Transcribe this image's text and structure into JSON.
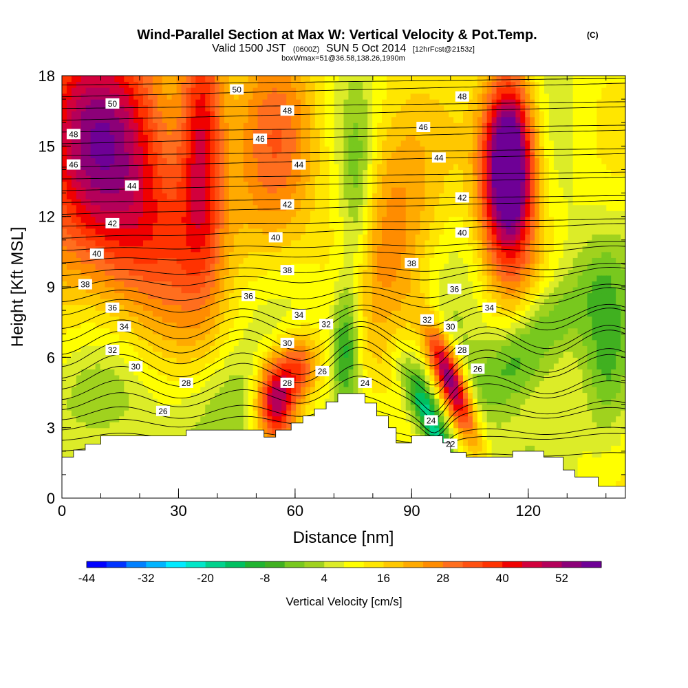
{
  "chart_data": {
    "type": "heatmap",
    "title": "Wind-Parallel Section at Max W: Vertical Velocity & Pot.Temp.",
    "copyright_mark": "(C)",
    "subtitle_parts": [
      "Valid 1500 JST",
      "(0600Z)",
      "SUN 5 Oct 2014",
      "[12hrFcst@2153z]"
    ],
    "subtitle2": "boxWmax=51@36.58,138.26,1990m",
    "xlabel": "Distance [nm]",
    "ylabel": "Height [Kft MSL]",
    "xlim": [
      0,
      145
    ],
    "ylim": [
      0,
      18
    ],
    "x_ticks": [
      "0",
      "30",
      "60",
      "90",
      "120"
    ],
    "x_tick_values": [
      0,
      30,
      60,
      90,
      120
    ],
    "y_ticks": [
      "0",
      "3",
      "6",
      "9",
      "12",
      "15",
      "18"
    ],
    "y_tick_values": [
      0,
      3,
      6,
      9,
      12,
      15,
      18
    ],
    "colorbar": {
      "label": "Vertical Velocity [cm/s]",
      "tick_labels": [
        "-44",
        "-32",
        "-20",
        "-8",
        "4",
        "16",
        "28",
        "40",
        "52"
      ],
      "tick_values": [
        -44,
        -32,
        -20,
        -8,
        4,
        16,
        28,
        40,
        52
      ],
      "levels": [
        -44,
        -40,
        -36,
        -32,
        -28,
        -24,
        -20,
        -16,
        -12,
        -8,
        -4,
        0,
        4,
        8,
        12,
        16,
        20,
        24,
        28,
        32,
        36,
        40,
        44,
        48,
        52,
        56
      ],
      "colors": [
        "#0000ff",
        "#0033ff",
        "#0080ff",
        "#00b4ff",
        "#00eaff",
        "#00e6c8",
        "#00d28c",
        "#00c060",
        "#20b430",
        "#40b020",
        "#78c81e",
        "#a0d21e",
        "#dcec28",
        "#ffff00",
        "#ffe600",
        "#ffc800",
        "#ffaa00",
        "#ff8c00",
        "#ff6e1e",
        "#ff5010",
        "#ff3200",
        "#f00000",
        "#d2003c",
        "#b4005a",
        "#8c0078",
        "#6e0096"
      ]
    },
    "terrain": [
      [
        0,
        1.75
      ],
      [
        3,
        1.75
      ],
      [
        3,
        2.05
      ],
      [
        6,
        2.05
      ],
      [
        6,
        2.3
      ],
      [
        10,
        2.3
      ],
      [
        10,
        2.65
      ],
      [
        32,
        2.65
      ],
      [
        32,
        2.9
      ],
      [
        52,
        2.9
      ],
      [
        52,
        2.6
      ],
      [
        55,
        2.6
      ],
      [
        55,
        2.9
      ],
      [
        59,
        2.9
      ],
      [
        59,
        3.2
      ],
      [
        62,
        3.2
      ],
      [
        62,
        3.5
      ],
      [
        65,
        3.5
      ],
      [
        65,
        3.8
      ],
      [
        68,
        3.8
      ],
      [
        68,
        4.1
      ],
      [
        71,
        4.1
      ],
      [
        71,
        4.45
      ],
      [
        78,
        4.45
      ],
      [
        78,
        4.05
      ],
      [
        81,
        4.05
      ],
      [
        81,
        3.5
      ],
      [
        84,
        3.5
      ],
      [
        84,
        3.0
      ],
      [
        86,
        3.0
      ],
      [
        86,
        2.35
      ],
      [
        90,
        2.35
      ],
      [
        90,
        2.65
      ],
      [
        98,
        2.65
      ],
      [
        98,
        2.35
      ],
      [
        100,
        2.35
      ],
      [
        100,
        1.95
      ],
      [
        104,
        1.95
      ],
      [
        104,
        1.75
      ],
      [
        116,
        1.75
      ],
      [
        116,
        2.0
      ],
      [
        124,
        2.0
      ],
      [
        124,
        1.75
      ],
      [
        129,
        1.75
      ],
      [
        129,
        1.2
      ],
      [
        132,
        1.2
      ],
      [
        132,
        0.9
      ],
      [
        138,
        0.9
      ],
      [
        138,
        0.5
      ],
      [
        145,
        0.5
      ]
    ],
    "w_features": [
      {
        "x": 115,
        "z": 13.5,
        "sx": 5,
        "sz": 2.8,
        "w": 55
      },
      {
        "x": 115,
        "z": 15.5,
        "sx": 4,
        "sz": 2.2,
        "w": 20
      },
      {
        "x": 100,
        "z": 5.0,
        "sx": 2.5,
        "sz": 1.6,
        "w": 50,
        "tilt": -0.35
      },
      {
        "x": 55,
        "z": 4.2,
        "sx": 3.5,
        "sz": 1.2,
        "w": 45
      },
      {
        "x": 61,
        "z": 5.6,
        "sx": 3.5,
        "sz": 1.0,
        "w": 25
      },
      {
        "x": 8,
        "z": 16,
        "sx": 14,
        "sz": 3.5,
        "w": 38
      },
      {
        "x": 36,
        "z": 15.5,
        "sx": 4,
        "sz": 4,
        "w": 32
      },
      {
        "x": 55,
        "z": 15,
        "sx": 8,
        "sz": 4,
        "w": 18
      },
      {
        "x": 85,
        "z": 12,
        "sx": 8,
        "sz": 4,
        "w": 18
      },
      {
        "x": 20,
        "z": 11,
        "sx": 14,
        "sz": 3,
        "w": 24
      },
      {
        "x": 73,
        "z": 6.5,
        "sx": 2.5,
        "sz": 2.0,
        "w": -22
      },
      {
        "x": 95,
        "z": 3.2,
        "sx": 2.5,
        "sz": 1.8,
        "w": -28,
        "tilt": -0.4
      },
      {
        "x": 120,
        "z": 6.5,
        "sx": 7,
        "sz": 2.0,
        "w": -18,
        "tilt": 0.6
      },
      {
        "x": 76,
        "z": 13,
        "sx": 3,
        "sz": 3,
        "w": -14
      },
      {
        "x": 140,
        "z": 6,
        "sx": 4,
        "sz": 3,
        "w": -10
      },
      {
        "x": 45,
        "z": 4,
        "sx": 8,
        "sz": 1.5,
        "w": -8
      },
      {
        "x": 10,
        "z": 4,
        "sx": 8,
        "sz": 1.5,
        "w": -8
      }
    ],
    "contour_labels": [
      {
        "text": "50",
        "x": 13,
        "z": 16.8
      },
      {
        "text": "50",
        "x": 45,
        "z": 17.4
      },
      {
        "text": "48",
        "x": 3,
        "z": 15.5
      },
      {
        "text": "48",
        "x": 58,
        "z": 16.5
      },
      {
        "text": "48",
        "x": 103,
        "z": 17.1
      },
      {
        "text": "46",
        "x": 3,
        "z": 14.2
      },
      {
        "text": "46",
        "x": 51,
        "z": 15.3
      },
      {
        "text": "46",
        "x": 93,
        "z": 15.8
      },
      {
        "text": "44",
        "x": 18,
        "z": 13.3
      },
      {
        "text": "44",
        "x": 61,
        "z": 14.2
      },
      {
        "text": "44",
        "x": 97,
        "z": 14.5
      },
      {
        "text": "42",
        "x": 13,
        "z": 11.7
      },
      {
        "text": "42",
        "x": 58,
        "z": 12.5
      },
      {
        "text": "42",
        "x": 103,
        "z": 12.8
      },
      {
        "text": "40",
        "x": 9,
        "z": 10.4
      },
      {
        "text": "40",
        "x": 55,
        "z": 11.1
      },
      {
        "text": "40",
        "x": 103,
        "z": 11.3
      },
      {
        "text": "38",
        "x": 6,
        "z": 9.1
      },
      {
        "text": "38",
        "x": 58,
        "z": 9.7
      },
      {
        "text": "38",
        "x": 90,
        "z": 10.0
      },
      {
        "text": "36",
        "x": 13,
        "z": 8.1
      },
      {
        "text": "36",
        "x": 48,
        "z": 8.6
      },
      {
        "text": "36",
        "x": 101,
        "z": 8.9
      },
      {
        "text": "34",
        "x": 16,
        "z": 7.3
      },
      {
        "text": "34",
        "x": 61,
        "z": 7.8
      },
      {
        "text": "34",
        "x": 110,
        "z": 8.1
      },
      {
        "text": "32",
        "x": 13,
        "z": 6.3
      },
      {
        "text": "32",
        "x": 68,
        "z": 7.4
      },
      {
        "text": "32",
        "x": 94,
        "z": 7.6
      },
      {
        "text": "30",
        "x": 19,
        "z": 5.6
      },
      {
        "text": "30",
        "x": 58,
        "z": 6.6
      },
      {
        "text": "30",
        "x": 100,
        "z": 7.3
      },
      {
        "text": "28",
        "x": 32,
        "z": 4.9
      },
      {
        "text": "28",
        "x": 58,
        "z": 4.9
      },
      {
        "text": "28",
        "x": 103,
        "z": 6.3
      },
      {
        "text": "26",
        "x": 26,
        "z": 3.7
      },
      {
        "text": "26",
        "x": 67,
        "z": 5.4
      },
      {
        "text": "26",
        "x": 107,
        "z": 5.5
      },
      {
        "text": "24",
        "x": 78,
        "z": 4.9
      },
      {
        "text": "24",
        "x": 95,
        "z": 3.3
      },
      {
        "text": "22",
        "x": 100,
        "z": 2.3
      }
    ]
  }
}
